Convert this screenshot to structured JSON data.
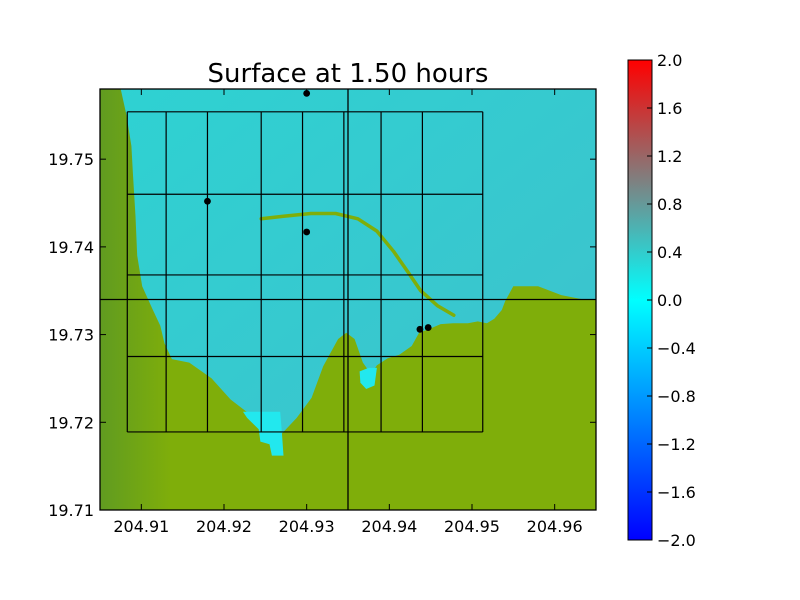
{
  "chart_data": {
    "type": "heatmap",
    "title": "Surface at 1.50 hours",
    "xlim": [
      204.905,
      204.965
    ],
    "ylim": [
      19.71,
      19.758
    ],
    "xticks": [
      204.91,
      204.92,
      204.93,
      204.94,
      204.95,
      204.96
    ],
    "xtick_labels": [
      "204.91",
      "204.92",
      "204.93",
      "204.94",
      "204.95",
      "204.96"
    ],
    "yticks": [
      19.71,
      19.72,
      19.73,
      19.74,
      19.75
    ],
    "ytick_labels": [
      "19.71",
      "19.72",
      "19.73",
      "19.74",
      "19.75"
    ],
    "colorbar": {
      "vmin": -2.0,
      "vmax": 2.0,
      "ticks": [
        -2.0,
        -1.6,
        -1.2,
        -0.8,
        -0.4,
        0.0,
        0.4,
        0.8,
        1.2,
        1.6,
        2.0
      ],
      "tick_labels": [
        "−2.0",
        "−1.6",
        "−1.2",
        "−0.8",
        "−0.4",
        "0.0",
        "0.4",
        "0.8",
        "1.2",
        "1.6",
        "2.0"
      ],
      "colors": [
        "#0000ff",
        "#00ffff",
        "#ff0000"
      ]
    },
    "colors": {
      "water": "#2ed2d2",
      "water_deep": "#3fc0cc",
      "shallow": "#22e8ee",
      "land": "#7fae0a",
      "land_dark": "#5e9a22"
    },
    "grid_x_edges": [
      204.9083,
      204.913,
      204.918,
      204.9245,
      204.9295,
      204.9345,
      204.939,
      204.944,
      204.9513
    ],
    "grid_y_edges": [
      19.7189,
      19.7275,
      19.7368,
      19.746,
      19.7554
    ],
    "crosshair": {
      "x": 204.935,
      "y": 19.734
    },
    "gauges": [
      {
        "x": 204.93,
        "y": 19.7575
      },
      {
        "x": 204.918,
        "y": 19.7452
      },
      {
        "x": 204.93,
        "y": 19.7417
      },
      {
        "x": 204.9437,
        "y": 19.7306
      },
      {
        "x": 204.9447,
        "y": 19.7308
      }
    ],
    "coastline": [
      [
        204.9075,
        19.758
      ],
      [
        204.9082,
        19.755
      ],
      [
        204.9088,
        19.7515
      ],
      [
        204.909,
        19.748
      ],
      [
        204.9093,
        19.7435
      ],
      [
        204.9095,
        19.739
      ],
      [
        204.9101,
        19.7355
      ],
      [
        204.9113,
        19.733
      ],
      [
        204.9123,
        19.731
      ],
      [
        204.9128,
        19.729
      ],
      [
        204.9137,
        19.7272
      ],
      [
        204.9158,
        19.7268
      ],
      [
        204.9185,
        19.725
      ],
      [
        204.9208,
        19.7226
      ],
      [
        204.923,
        19.721
      ],
      [
        204.9252,
        19.7201
      ],
      [
        204.9258,
        19.7187
      ],
      [
        204.9268,
        19.7185
      ],
      [
        204.9288,
        19.7205
      ],
      [
        204.9306,
        19.7228
      ],
      [
        204.932,
        19.7264
      ],
      [
        204.9338,
        19.7295
      ],
      [
        204.9348,
        19.7302
      ],
      [
        204.9358,
        19.7295
      ],
      [
        204.9368,
        19.7268
      ],
      [
        204.9378,
        19.7255
      ],
      [
        204.9385,
        19.7265
      ],
      [
        204.9398,
        19.7273
      ],
      [
        204.9412,
        19.7277
      ],
      [
        204.9427,
        19.7287
      ],
      [
        204.9436,
        19.7302
      ],
      [
        204.945,
        19.7307
      ],
      [
        204.9462,
        19.7312
      ],
      [
        204.9477,
        19.7313
      ],
      [
        204.9495,
        19.7313
      ],
      [
        204.9507,
        19.7315
      ],
      [
        204.9518,
        19.7313
      ],
      [
        204.9527,
        19.7318
      ],
      [
        204.9536,
        19.7328
      ],
      [
        204.954,
        19.7338
      ],
      [
        204.955,
        19.7355
      ],
      [
        204.958,
        19.7355
      ],
      [
        204.9608,
        19.7345
      ],
      [
        204.9635,
        19.734
      ],
      [
        204.965,
        19.734
      ]
    ],
    "channel": [
      [
        204.9223,
        19.7212
      ],
      [
        204.9268,
        19.7212
      ],
      [
        204.927,
        19.7188
      ],
      [
        204.9272,
        19.7162
      ],
      [
        204.9258,
        19.7162
      ],
      [
        204.9255,
        19.7175
      ],
      [
        204.9244,
        19.7178
      ],
      [
        204.9242,
        19.7192
      ],
      [
        204.9228,
        19.7205
      ]
    ],
    "harbor_inlet": [
      [
        204.9375,
        19.7262
      ],
      [
        204.9385,
        19.7262
      ],
      [
        204.9382,
        19.7242
      ],
      [
        204.9372,
        19.7238
      ],
      [
        204.9365,
        19.7245
      ],
      [
        204.9364,
        19.7258
      ]
    ],
    "breakwater": [
      [
        204.9245,
        19.7432
      ],
      [
        204.9272,
        19.7435
      ],
      [
        204.9305,
        19.7438
      ],
      [
        204.9335,
        19.7438
      ],
      [
        204.9362,
        19.7432
      ],
      [
        204.9385,
        19.7418
      ],
      [
        204.9405,
        19.7395
      ],
      [
        204.9422,
        19.7372
      ],
      [
        204.9438,
        19.735
      ],
      [
        204.9458,
        19.7333
      ],
      [
        204.9478,
        19.7322
      ]
    ]
  }
}
